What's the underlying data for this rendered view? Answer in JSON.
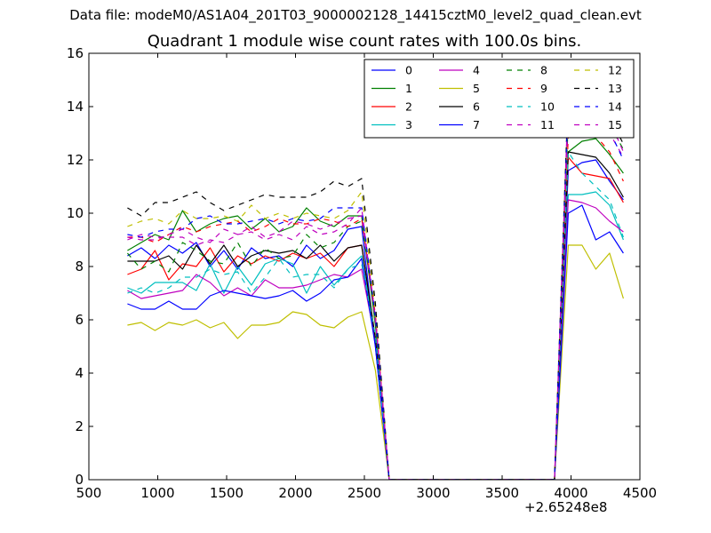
{
  "header": {
    "suptitle": "Data file: modeM0/AS1A04_201T03_9000002128_14415cztM0_level2_quad_clean.evt"
  },
  "chart_data": {
    "type": "line",
    "title": "Quadrant 1 module wise count rates with 100.0s bins.",
    "xlabel": "",
    "ylabel": "",
    "x_offset_label": "+2.65248e8",
    "xlim": [
      500,
      4500
    ],
    "ylim": [
      0,
      16
    ],
    "xticks": [
      500,
      1000,
      1500,
      2000,
      2500,
      3000,
      3500,
      4000,
      4500
    ],
    "yticks": [
      0,
      2,
      4,
      6,
      8,
      10,
      12,
      14,
      16
    ],
    "grid": false,
    "legend_position": "top-right",
    "x": [
      780,
      880,
      980,
      1080,
      1180,
      1280,
      1380,
      1480,
      1580,
      1680,
      1780,
      1880,
      1980,
      2080,
      2180,
      2280,
      2380,
      2480,
      2580,
      2680,
      2780,
      2880,
      2980,
      3080,
      3180,
      3280,
      3380,
      3480,
      3580,
      3680,
      3780,
      3880,
      3980,
      4080,
      4180,
      4280,
      4380
    ],
    "series": [
      {
        "name": "0",
        "color": "#0000ff",
        "dash": "solid",
        "values": [
          8.4,
          8.7,
          8.3,
          8.8,
          8.5,
          8.9,
          8.0,
          8.6,
          7.9,
          8.7,
          8.3,
          8.4,
          8.0,
          8.8,
          8.3,
          8.6,
          9.4,
          9.5,
          5.0,
          0,
          0,
          0,
          0,
          0,
          0,
          0,
          0,
          0,
          0,
          0,
          0,
          0,
          11.6,
          11.9,
          12.0,
          11.2,
          10.5
        ]
      },
      {
        "name": "1",
        "color": "#008000",
        "dash": "solid",
        "values": [
          8.6,
          8.9,
          9.2,
          9.0,
          10.1,
          9.3,
          9.6,
          9.8,
          9.9,
          9.4,
          9.8,
          9.3,
          9.5,
          10.2,
          9.7,
          9.5,
          9.9,
          9.9,
          5.8,
          0,
          0,
          0,
          0,
          0,
          0,
          0,
          0,
          0,
          0,
          0,
          0,
          0,
          12.3,
          12.7,
          12.8,
          12.2,
          11.5
        ]
      },
      {
        "name": "2",
        "color": "#ff0000",
        "dash": "solid",
        "values": [
          7.7,
          7.9,
          8.6,
          7.5,
          8.1,
          8.0,
          8.7,
          7.8,
          8.4,
          8.1,
          8.4,
          8.2,
          8.5,
          8.3,
          8.5,
          8.0,
          8.7,
          8.8,
          5.3,
          0,
          0,
          0,
          0,
          0,
          0,
          0,
          0,
          0,
          0,
          0,
          0,
          0,
          12.1,
          11.5,
          11.4,
          11.3,
          10.4
        ]
      },
      {
        "name": "3",
        "color": "#00bfbf",
        "dash": "solid",
        "values": [
          7.2,
          7.0,
          7.4,
          7.4,
          7.4,
          7.1,
          8.1,
          7.0,
          8.0,
          7.3,
          8.1,
          8.3,
          8.1,
          7.0,
          8.0,
          7.3,
          7.9,
          8.4,
          5.2,
          0,
          0,
          0,
          0,
          0,
          0,
          0,
          0,
          0,
          0,
          0,
          0,
          0,
          10.7,
          10.7,
          10.8,
          10.3,
          9.0
        ]
      },
      {
        "name": "4",
        "color": "#bf00bf",
        "dash": "solid",
        "values": [
          7.1,
          6.8,
          6.9,
          7.0,
          7.1,
          7.7,
          7.4,
          6.9,
          7.2,
          6.9,
          7.5,
          7.2,
          7.2,
          7.3,
          7.5,
          7.7,
          7.6,
          7.9,
          5.2,
          0,
          0,
          0,
          0,
          0,
          0,
          0,
          0,
          0,
          0,
          0,
          0,
          0,
          10.5,
          10.4,
          10.2,
          9.7,
          9.3
        ]
      },
      {
        "name": "5",
        "color": "#bfbf00",
        "dash": "solid",
        "values": [
          5.8,
          5.9,
          5.6,
          5.9,
          5.8,
          6.0,
          5.7,
          5.9,
          5.3,
          5.8,
          5.8,
          5.9,
          6.3,
          6.2,
          5.8,
          5.7,
          6.1,
          6.3,
          4.1,
          0,
          0,
          0,
          0,
          0,
          0,
          0,
          0,
          0,
          0,
          0,
          0,
          0,
          8.8,
          8.8,
          7.9,
          8.5,
          6.8
        ]
      },
      {
        "name": "6",
        "color": "#000000",
        "dash": "solid",
        "values": [
          8.2,
          8.2,
          8.2,
          8.4,
          7.9,
          8.8,
          8.1,
          8.8,
          8.0,
          8.4,
          8.6,
          8.5,
          8.6,
          8.3,
          8.8,
          8.2,
          8.7,
          8.8,
          5.3,
          0,
          0,
          0,
          0,
          0,
          0,
          0,
          0,
          0,
          0,
          0,
          0,
          0,
          12.3,
          12.2,
          12.1,
          11.5,
          10.6
        ]
      },
      {
        "name": "7",
        "color": "#0000ff",
        "dash": "solid",
        "values": [
          6.6,
          6.4,
          6.4,
          6.7,
          6.4,
          6.4,
          6.9,
          7.1,
          7.0,
          6.9,
          6.8,
          6.9,
          7.1,
          6.7,
          7.0,
          7.5,
          7.6,
          8.3,
          5.0,
          0,
          0,
          0,
          0,
          0,
          0,
          0,
          0,
          0,
          0,
          0,
          0,
          0,
          10.0,
          10.3,
          9.0,
          9.3,
          8.5
        ]
      },
      {
        "name": "8",
        "color": "#008000",
        "dash": "dashed",
        "values": [
          8.5,
          7.9,
          8.2,
          7.8,
          8.9,
          8.6,
          8.2,
          8.1,
          8.9,
          8.0,
          8.7,
          8.3,
          8.4,
          9.2,
          8.7,
          8.9,
          9.5,
          9.7,
          6.0,
          0,
          0,
          0,
          0,
          0,
          0,
          0,
          0,
          0,
          0,
          0,
          0,
          0,
          13.5,
          13.7,
          13.9,
          13.3,
          12.4
        ]
      },
      {
        "name": "9",
        "color": "#ff0000",
        "dash": "dashed",
        "values": [
          9.1,
          9.1,
          8.9,
          9.2,
          9.5,
          9.3,
          9.5,
          9.6,
          9.7,
          9.3,
          9.5,
          9.8,
          9.6,
          9.6,
          9.8,
          9.7,
          9.5,
          9.8,
          6.2,
          0,
          0,
          0,
          0,
          0,
          0,
          0,
          0,
          0,
          0,
          0,
          0,
          0,
          12.9,
          13.2,
          12.9,
          12.3,
          11.2
        ]
      },
      {
        "name": "10",
        "color": "#00bfbf",
        "dash": "dashed",
        "values": [
          7.0,
          7.2,
          7.0,
          7.2,
          7.6,
          7.6,
          7.9,
          7.7,
          7.8,
          7.0,
          7.6,
          8.3,
          7.6,
          7.7,
          7.7,
          7.2,
          7.9,
          8.1,
          5.4,
          0,
          0,
          0,
          0,
          0,
          0,
          0,
          0,
          0,
          0,
          0,
          0,
          0,
          12.3,
          11.5,
          11.0,
          10.5,
          9.1
        ]
      },
      {
        "name": "11",
        "color": "#bf00bf",
        "dash": "dashed",
        "values": [
          9.0,
          9.2,
          9.1,
          9.1,
          9.1,
          8.8,
          9.0,
          8.9,
          9.2,
          9.3,
          9.0,
          9.2,
          9.0,
          9.5,
          9.2,
          9.3,
          9.6,
          10.2,
          6.0,
          0,
          0,
          0,
          0,
          0,
          0,
          0,
          0,
          0,
          0,
          0,
          0,
          0,
          13.7,
          14.0,
          13.8,
          13.0,
          12.1
        ]
      },
      {
        "name": "12",
        "color": "#bfbf00",
        "dash": "dashed",
        "values": [
          9.5,
          9.7,
          9.8,
          9.6,
          10.1,
          9.8,
          9.8,
          9.9,
          9.7,
          10.3,
          9.8,
          10.0,
          9.8,
          10.0,
          9.9,
          9.8,
          10.1,
          10.8,
          6.3,
          0,
          0,
          0,
          0,
          0,
          0,
          0,
          0,
          0,
          0,
          0,
          0,
          0,
          14.3,
          14.6,
          14.5,
          13.6,
          13.5
        ]
      },
      {
        "name": "13",
        "color": "#000000",
        "dash": "dashed",
        "values": [
          10.2,
          9.9,
          10.4,
          10.4,
          10.6,
          10.8,
          10.4,
          10.1,
          10.3,
          10.5,
          10.7,
          10.6,
          10.6,
          10.6,
          10.8,
          11.2,
          11.0,
          11.3,
          6.6,
          0,
          0,
          0,
          0,
          0,
          0,
          0,
          0,
          0,
          0,
          0,
          0,
          0,
          14.6,
          15.0,
          14.6,
          13.6,
          12.6
        ]
      },
      {
        "name": "14",
        "color": "#0000ff",
        "dash": "dashed",
        "values": [
          9.2,
          9.1,
          9.3,
          9.4,
          9.4,
          9.8,
          9.9,
          9.6,
          9.6,
          9.7,
          9.8,
          9.6,
          9.8,
          9.7,
          9.8,
          10.2,
          10.2,
          10.2,
          6.1,
          0,
          0,
          0,
          0,
          0,
          0,
          0,
          0,
          0,
          0,
          0,
          0,
          0,
          14.2,
          13.7,
          13.6,
          13.1,
          12.0
        ]
      },
      {
        "name": "15",
        "color": "#bf00bf",
        "dash": "dashed",
        "values": [
          9.1,
          9.0,
          9.0,
          9.2,
          9.4,
          9.1,
          8.9,
          9.4,
          9.2,
          9.5,
          9.1,
          9.3,
          9.7,
          9.6,
          9.4,
          9.6,
          9.8,
          9.9,
          6.0,
          0,
          0,
          0,
          0,
          0,
          0,
          0,
          0,
          0,
          0,
          0,
          0,
          0,
          14.4,
          14.7,
          14.4,
          13.5,
          12.3
        ]
      }
    ]
  }
}
